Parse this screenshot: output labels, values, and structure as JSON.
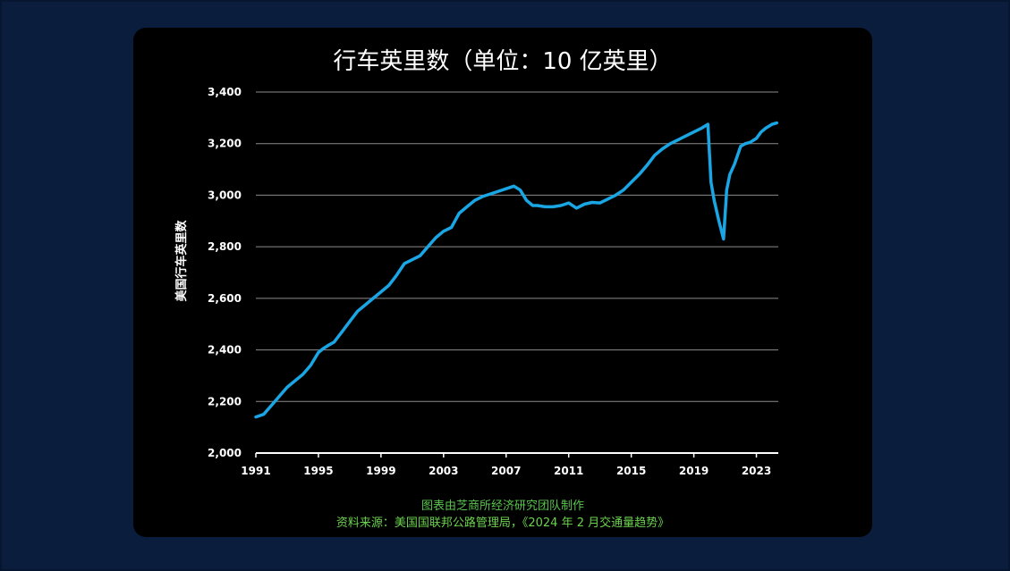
{
  "chart_data": {
    "type": "line",
    "title": "行车英里数（单位：10 亿英里）",
    "ylabel": "美国行车英里数",
    "xlabel": "",
    "xlim": [
      1991,
      2024.4
    ],
    "ylim": [
      2000,
      3400
    ],
    "x_ticks": [
      "1991",
      "1995",
      "1999",
      "2003",
      "2007",
      "2011",
      "2015",
      "2019",
      "2023"
    ],
    "x_tick_values": [
      1991,
      1995,
      1999,
      2003,
      2007,
      2011,
      2015,
      2019,
      2023
    ],
    "y_ticks": [
      "2,000",
      "2,200",
      "2,400",
      "2,600",
      "2,800",
      "3,000",
      "3,200",
      "3,400"
    ],
    "y_tick_values": [
      2000,
      2200,
      2400,
      2600,
      2800,
      3000,
      3200,
      3400
    ],
    "grid": true,
    "series": [
      {
        "color": "#1aa6e4",
        "x": [
          1991.0,
          1991.5,
          1992.0,
          1992.5,
          1993.0,
          1993.5,
          1994.0,
          1994.5,
          1995.0,
          1995.3,
          1995.7,
          1996.0,
          1996.5,
          1997.0,
          1997.5,
          1998.0,
          1998.5,
          1999.0,
          1999.5,
          2000.0,
          2000.5,
          2001.0,
          2001.5,
          2002.0,
          2002.5,
          2003.0,
          2003.5,
          2004.0,
          2004.5,
          2005.0,
          2005.5,
          2006.0,
          2006.5,
          2007.0,
          2007.5,
          2007.9,
          2008.3,
          2008.7,
          2009.0,
          2009.5,
          2010.0,
          2010.5,
          2011.0,
          2011.5,
          2012.0,
          2012.5,
          2013.0,
          2013.5,
          2014.0,
          2014.5,
          2015.0,
          2015.5,
          2016.0,
          2016.5,
          2017.0,
          2017.5,
          2018.0,
          2018.5,
          2019.0,
          2019.5,
          2019.9,
          2020.1,
          2020.3,
          2020.6,
          2020.9,
          2021.1,
          2021.3,
          2021.6,
          2022.0,
          2022.3,
          2022.6,
          2023.0,
          2023.3,
          2023.6,
          2024.0,
          2024.3
        ],
        "y": [
          2140,
          2150,
          2185,
          2220,
          2255,
          2280,
          2305,
          2340,
          2390,
          2405,
          2420,
          2430,
          2470,
          2510,
          2550,
          2575,
          2600,
          2625,
          2650,
          2690,
          2735,
          2750,
          2765,
          2800,
          2835,
          2860,
          2875,
          2930,
          2955,
          2980,
          2995,
          3005,
          3015,
          3025,
          3035,
          3020,
          2980,
          2960,
          2960,
          2955,
          2955,
          2960,
          2970,
          2950,
          2965,
          2972,
          2970,
          2985,
          3000,
          3020,
          3050,
          3080,
          3115,
          3155,
          3180,
          3200,
          3215,
          3230,
          3245,
          3260,
          3275,
          3050,
          2980,
          2900,
          2830,
          3020,
          3080,
          3120,
          3190,
          3200,
          3205,
          3220,
          3245,
          3260,
          3275,
          3280
        ]
      }
    ]
  },
  "footer": {
    "credit": "图表由芝商所经济研究团队制作",
    "source": "资料来源：美国国联邦公路管理局，《2024 年 2 月交通量趋势》"
  }
}
